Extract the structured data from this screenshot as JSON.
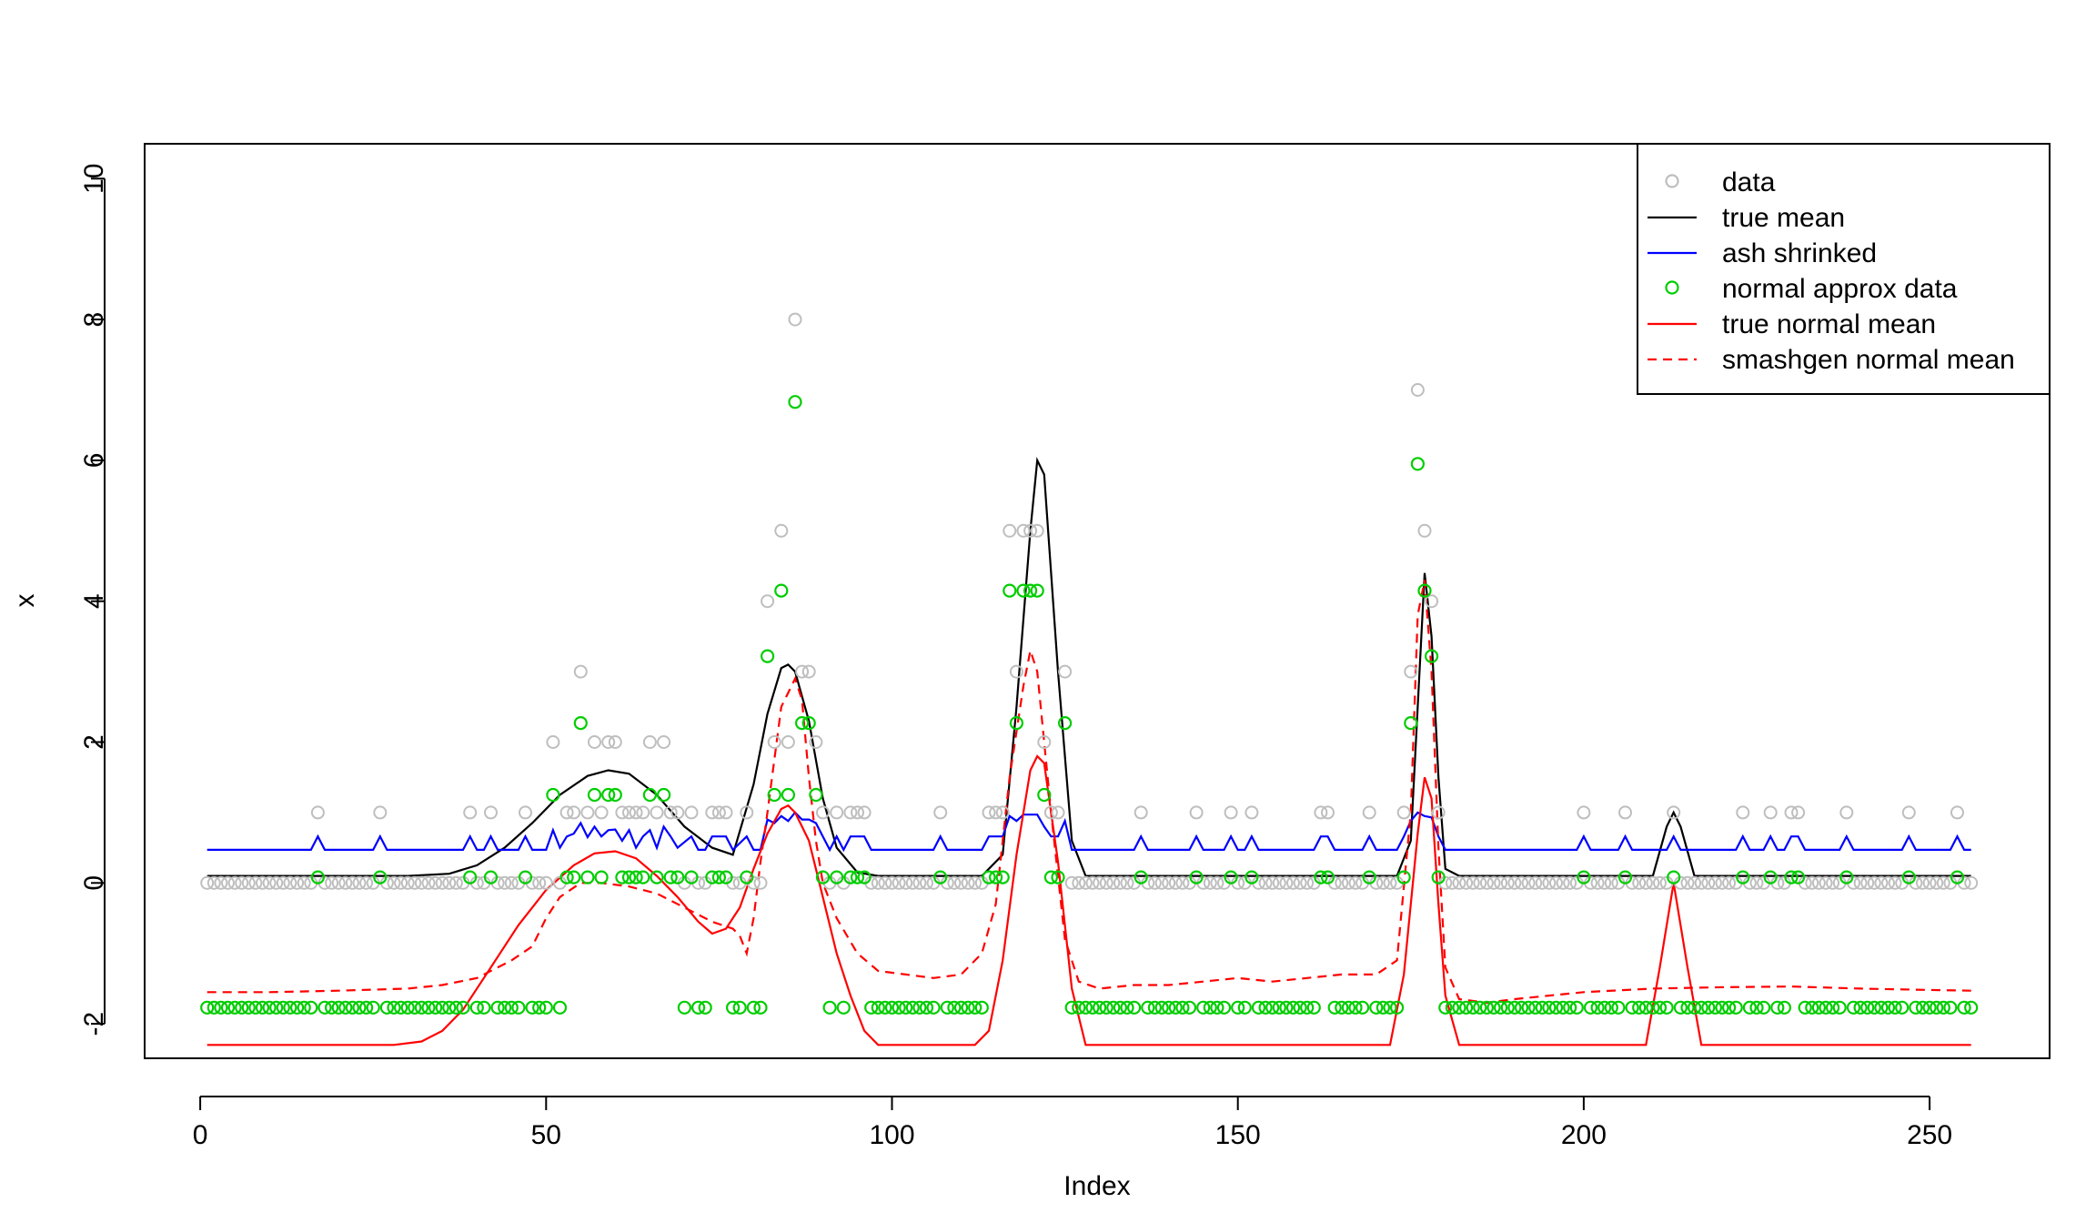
{
  "chart_data": {
    "type": "line",
    "title": "",
    "xlabel": "Index",
    "ylabel": "x",
    "xlim": [
      1,
      256
    ],
    "ylim": [
      -2.3,
      10
    ],
    "xticks": [
      0,
      50,
      100,
      150,
      200,
      250
    ],
    "yticks": [
      -2,
      0,
      2,
      4,
      6,
      8,
      10
    ],
    "grid": false,
    "legend_position": "top-right",
    "colors": {
      "data": "#bebebe",
      "true_mean": "#000000",
      "ash": "#0000ff",
      "normal_data": "#00cd00",
      "true_normal": "#ff0000",
      "smash": "#ff0000"
    },
    "legend": [
      {
        "label": "data",
        "kind": "point",
        "color": "#bebebe"
      },
      {
        "label": "true mean",
        "kind": "line",
        "color": "#000000",
        "dash": false
      },
      {
        "label": "ash shrinked",
        "kind": "line",
        "color": "#0000ff",
        "dash": false
      },
      {
        "label": "normal approx data",
        "kind": "point",
        "color": "#00cd00"
      },
      {
        "label": "true normal mean",
        "kind": "line",
        "color": "#ff0000",
        "dash": false
      },
      {
        "label": "smashgen normal mean",
        "kind": "line",
        "color": "#ff0000",
        "dash": true
      }
    ],
    "data_counts": {
      "1": 17,
      "2": 26,
      "3": 39,
      "4": 42,
      "5": 47,
      "6": 51,
      "7": 53,
      "8": 54,
      "9": 55,
      "10": 57,
      "11": 59,
      "12": 60,
      "13": 63,
      "14": 64,
      "15": 65,
      "16": 66,
      "17": 68,
      "18": 71,
      "19": 74,
      "20": 75,
      "21": 76,
      "22": 77,
      "23": 79,
      "24": 80,
      "25": 81,
      "26": 82,
      "27": 83,
      "28": 84,
      "29": 85,
      "30": 86,
      "31": 87,
      "32": 88,
      "33": 89,
      "34": 90,
      "35": 91,
      "36": 93,
      "37": 94,
      "38": 95,
      "39": 96,
      "40": 107,
      "41": 112,
      "42": 113,
      "43": 114,
      "44": 115,
      "45": 117,
      "46": 118,
      "47": 119,
      "48": 120,
      "49": 121,
      "50": 122,
      "51": 123,
      "52": 124,
      "53": 125,
      "54": 136,
      "55": 144,
      "56": 149,
      "57": 152,
      "58": 162,
      "59": 163,
      "60": 169,
      "61": 174,
      "62": 175,
      "63": 176,
      "64": 177,
      "65": 178,
      "66": 179,
      "67": 200,
      "68": 206,
      "69": 212,
      "70": 223,
      "71": 227,
      "72": 229,
      "73": 230,
      "74": 231,
      "75": 238,
      "76": 247,
      "77": 254
    },
    "nonzero_data": [
      [
        17,
        1
      ],
      [
        26,
        1
      ],
      [
        39,
        1
      ],
      [
        42,
        1
      ],
      [
        47,
        1
      ],
      [
        51,
        2
      ],
      [
        53,
        1
      ],
      [
        54,
        1
      ],
      [
        55,
        3
      ],
      [
        56,
        1
      ],
      [
        57,
        2
      ],
      [
        58,
        1
      ],
      [
        59,
        2
      ],
      [
        60,
        2
      ],
      [
        61,
        1
      ],
      [
        62,
        1
      ],
      [
        63,
        1
      ],
      [
        64,
        1
      ],
      [
        65,
        2
      ],
      [
        66,
        1
      ],
      [
        67,
        2
      ],
      [
        68,
        1
      ],
      [
        69,
        1
      ],
      [
        71,
        1
      ],
      [
        74,
        1
      ],
      [
        75,
        1
      ],
      [
        76,
        1
      ],
      [
        79,
        1
      ],
      [
        82,
        4
      ],
      [
        83,
        2
      ],
      [
        84,
        5
      ],
      [
        85,
        2
      ],
      [
        86,
        8
      ],
      [
        87,
        3
      ],
      [
        88,
        3
      ],
      [
        89,
        2
      ],
      [
        90,
        1
      ],
      [
        92,
        1
      ],
      [
        94,
        1
      ],
      [
        95,
        1
      ],
      [
        96,
        1
      ],
      [
        107,
        1
      ],
      [
        114,
        1
      ],
      [
        115,
        1
      ],
      [
        116,
        1
      ],
      [
        117,
        5
      ],
      [
        118,
        3
      ],
      [
        119,
        5
      ],
      [
        120,
        5
      ],
      [
        121,
        5
      ],
      [
        122,
        2
      ],
      [
        123,
        1
      ],
      [
        124,
        1
      ],
      [
        125,
        3
      ],
      [
        136,
        1
      ],
      [
        144,
        1
      ],
      [
        149,
        1
      ],
      [
        152,
        1
      ],
      [
        162,
        1
      ],
      [
        163,
        1
      ],
      [
        169,
        1
      ],
      [
        174,
        1
      ],
      [
        175,
        3
      ],
      [
        176,
        7
      ],
      [
        177,
        5
      ],
      [
        178,
        4
      ],
      [
        179,
        1
      ],
      [
        200,
        1
      ],
      [
        206,
        1
      ],
      [
        213,
        1
      ],
      [
        223,
        1
      ],
      [
        227,
        1
      ],
      [
        230,
        1
      ],
      [
        231,
        1
      ],
      [
        238,
        1
      ],
      [
        247,
        1
      ],
      [
        254,
        1
      ]
    ],
    "normal_data_levels": {
      "0": -1.77,
      "1": 0.08,
      "2": 1.25,
      "3": 2.27,
      "4": 3.22,
      "5": 4.15,
      "7": 5.95,
      "8": 6.83
    },
    "true_mean_points": [
      [
        1,
        0.1
      ],
      [
        30,
        0.1
      ],
      [
        36,
        0.13
      ],
      [
        40,
        0.25
      ],
      [
        44,
        0.5
      ],
      [
        48,
        0.85
      ],
      [
        52,
        1.25
      ],
      [
        56,
        1.52
      ],
      [
        59,
        1.6
      ],
      [
        62,
        1.55
      ],
      [
        66,
        1.25
      ],
      [
        70,
        0.8
      ],
      [
        74,
        0.5
      ],
      [
        77,
        0.4
      ],
      [
        80,
        1.4
      ],
      [
        82,
        2.4
      ],
      [
        84,
        3.05
      ],
      [
        85,
        3.1
      ],
      [
        86,
        3.0
      ],
      [
        88,
        2.3
      ],
      [
        90,
        1.2
      ],
      [
        92,
        0.5
      ],
      [
        95,
        0.15
      ],
      [
        98,
        0.1
      ],
      [
        113,
        0.1
      ],
      [
        116,
        0.4
      ],
      [
        118,
        2.5
      ],
      [
        120,
        5.0
      ],
      [
        121,
        6.0
      ],
      [
        122,
        5.8
      ],
      [
        124,
        3.0
      ],
      [
        126,
        0.6
      ],
      [
        128,
        0.1
      ],
      [
        173,
        0.1
      ],
      [
        175,
        0.6
      ],
      [
        176,
        2.5
      ],
      [
        177,
        4.4
      ],
      [
        178,
        3.5
      ],
      [
        179,
        1.5
      ],
      [
        180,
        0.2
      ],
      [
        182,
        0.1
      ],
      [
        210,
        0.1
      ],
      [
        212,
        0.8
      ],
      [
        213,
        1.0
      ],
      [
        214,
        0.8
      ],
      [
        216,
        0.1
      ],
      [
        256,
        0.1
      ]
    ],
    "ash_points": [
      [
        1,
        0.47
      ],
      [
        16,
        0.47
      ],
      [
        17,
        0.66
      ],
      [
        18,
        0.47
      ],
      [
        25,
        0.47
      ],
      [
        26,
        0.66
      ],
      [
        27,
        0.47
      ],
      [
        38,
        0.47
      ],
      [
        39,
        0.66
      ],
      [
        40,
        0.47
      ],
      [
        41,
        0.47
      ],
      [
        42,
        0.66
      ],
      [
        43,
        0.47
      ],
      [
        46,
        0.47
      ],
      [
        47,
        0.66
      ],
      [
        48,
        0.47
      ],
      [
        50,
        0.47
      ],
      [
        51,
        0.75
      ],
      [
        52,
        0.5
      ],
      [
        53,
        0.66
      ],
      [
        54,
        0.7
      ],
      [
        55,
        0.85
      ],
      [
        56,
        0.65
      ],
      [
        57,
        0.8
      ],
      [
        58,
        0.66
      ],
      [
        59,
        0.75
      ],
      [
        60,
        0.76
      ],
      [
        61,
        0.6
      ],
      [
        62,
        0.75
      ],
      [
        63,
        0.5
      ],
      [
        64,
        0.66
      ],
      [
        65,
        0.75
      ],
      [
        66,
        0.5
      ],
      [
        67,
        0.8
      ],
      [
        68,
        0.66
      ],
      [
        69,
        0.5
      ],
      [
        71,
        0.66
      ],
      [
        72,
        0.47
      ],
      [
        73,
        0.47
      ],
      [
        74,
        0.66
      ],
      [
        75,
        0.66
      ],
      [
        76,
        0.66
      ],
      [
        77,
        0.47
      ],
      [
        79,
        0.66
      ],
      [
        80,
        0.47
      ],
      [
        81,
        0.47
      ],
      [
        82,
        0.9
      ],
      [
        83,
        0.85
      ],
      [
        84,
        0.95
      ],
      [
        85,
        0.88
      ],
      [
        86,
        1.0
      ],
      [
        87,
        0.9
      ],
      [
        88,
        0.9
      ],
      [
        89,
        0.85
      ],
      [
        90,
        0.66
      ],
      [
        91,
        0.47
      ],
      [
        92,
        0.66
      ],
      [
        93,
        0.47
      ],
      [
        94,
        0.66
      ],
      [
        95,
        0.66
      ],
      [
        96,
        0.66
      ],
      [
        97,
        0.47
      ],
      [
        106,
        0.47
      ],
      [
        107,
        0.66
      ],
      [
        108,
        0.47
      ],
      [
        113,
        0.47
      ],
      [
        114,
        0.66
      ],
      [
        115,
        0.66
      ],
      [
        116,
        0.66
      ],
      [
        117,
        0.95
      ],
      [
        118,
        0.88
      ],
      [
        119,
        0.97
      ],
      [
        120,
        0.97
      ],
      [
        121,
        0.97
      ],
      [
        122,
        0.8
      ],
      [
        123,
        0.66
      ],
      [
        124,
        0.66
      ],
      [
        125,
        0.88
      ],
      [
        126,
        0.47
      ],
      [
        135,
        0.47
      ],
      [
        136,
        0.66
      ],
      [
        137,
        0.47
      ],
      [
        143,
        0.47
      ],
      [
        144,
        0.66
      ],
      [
        145,
        0.47
      ],
      [
        148,
        0.47
      ],
      [
        149,
        0.66
      ],
      [
        150,
        0.47
      ],
      [
        151,
        0.47
      ],
      [
        152,
        0.66
      ],
      [
        153,
        0.47
      ],
      [
        161,
        0.47
      ],
      [
        162,
        0.66
      ],
      [
        163,
        0.66
      ],
      [
        164,
        0.47
      ],
      [
        168,
        0.47
      ],
      [
        169,
        0.66
      ],
      [
        170,
        0.47
      ],
      [
        173,
        0.47
      ],
      [
        174,
        0.66
      ],
      [
        175,
        0.88
      ],
      [
        176,
        1.0
      ],
      [
        177,
        0.95
      ],
      [
        178,
        0.93
      ],
      [
        179,
        0.66
      ],
      [
        180,
        0.47
      ],
      [
        199,
        0.47
      ],
      [
        200,
        0.66
      ],
      [
        201,
        0.47
      ],
      [
        205,
        0.47
      ],
      [
        206,
        0.66
      ],
      [
        207,
        0.47
      ],
      [
        212,
        0.47
      ],
      [
        213,
        0.66
      ],
      [
        214,
        0.47
      ],
      [
        222,
        0.47
      ],
      [
        223,
        0.66
      ],
      [
        224,
        0.47
      ],
      [
        226,
        0.47
      ],
      [
        227,
        0.66
      ],
      [
        228,
        0.47
      ],
      [
        229,
        0.47
      ],
      [
        230,
        0.66
      ],
      [
        231,
        0.66
      ],
      [
        232,
        0.47
      ],
      [
        237,
        0.47
      ],
      [
        238,
        0.66
      ],
      [
        239,
        0.47
      ],
      [
        246,
        0.47
      ],
      [
        247,
        0.66
      ],
      [
        248,
        0.47
      ],
      [
        253,
        0.47
      ],
      [
        254,
        0.66
      ],
      [
        255,
        0.47
      ],
      [
        256,
        0.47
      ]
    ],
    "true_normal_points": [
      [
        1,
        -2.3
      ],
      [
        28,
        -2.3
      ],
      [
        32,
        -2.25
      ],
      [
        35,
        -2.1
      ],
      [
        38,
        -1.8
      ],
      [
        42,
        -1.2
      ],
      [
        46,
        -0.6
      ],
      [
        50,
        -0.1
      ],
      [
        54,
        0.25
      ],
      [
        57,
        0.42
      ],
      [
        60,
        0.45
      ],
      [
        63,
        0.35
      ],
      [
        66,
        0.1
      ],
      [
        69,
        -0.2
      ],
      [
        72,
        -0.55
      ],
      [
        74,
        -0.72
      ],
      [
        76,
        -0.65
      ],
      [
        78,
        -0.35
      ],
      [
        80,
        0.2
      ],
      [
        82,
        0.7
      ],
      [
        84,
        1.05
      ],
      [
        85,
        1.1
      ],
      [
        86,
        1.0
      ],
      [
        88,
        0.6
      ],
      [
        90,
        -0.2
      ],
      [
        92,
        -1.0
      ],
      [
        94,
        -1.6
      ],
      [
        96,
        -2.1
      ],
      [
        98,
        -2.3
      ],
      [
        112,
        -2.3
      ],
      [
        114,
        -2.1
      ],
      [
        116,
        -1.1
      ],
      [
        118,
        0.4
      ],
      [
        120,
        1.6
      ],
      [
        121,
        1.8
      ],
      [
        122,
        1.7
      ],
      [
        124,
        0.3
      ],
      [
        126,
        -1.5
      ],
      [
        128,
        -2.3
      ],
      [
        172,
        -2.3
      ],
      [
        174,
        -1.3
      ],
      [
        176,
        0.7
      ],
      [
        177,
        1.5
      ],
      [
        178,
        1.2
      ],
      [
        179,
        -0.3
      ],
      [
        180,
        -1.6
      ],
      [
        182,
        -2.3
      ],
      [
        209,
        -2.3
      ],
      [
        211,
        -1.2
      ],
      [
        213,
        0.0
      ],
      [
        215,
        -1.2
      ],
      [
        217,
        -2.3
      ],
      [
        256,
        -2.3
      ]
    ],
    "smash_points": [
      [
        1,
        -1.55
      ],
      [
        10,
        -1.55
      ],
      [
        20,
        -1.53
      ],
      [
        30,
        -1.5
      ],
      [
        35,
        -1.45
      ],
      [
        40,
        -1.35
      ],
      [
        45,
        -1.1
      ],
      [
        48,
        -0.9
      ],
      [
        50,
        -0.5
      ],
      [
        52,
        -0.2
      ],
      [
        55,
        0.0
      ],
      [
        58,
        0.0
      ],
      [
        62,
        -0.05
      ],
      [
        66,
        -0.15
      ],
      [
        70,
        -0.35
      ],
      [
        74,
        -0.55
      ],
      [
        77,
        -0.65
      ],
      [
        78,
        -0.75
      ],
      [
        79,
        -1.0
      ],
      [
        80,
        -0.5
      ],
      [
        81,
        0.3
      ],
      [
        82,
        1.0
      ],
      [
        84,
        2.5
      ],
      [
        86,
        2.9
      ],
      [
        87,
        2.6
      ],
      [
        88,
        1.5
      ],
      [
        89,
        0.6
      ],
      [
        90,
        0.0
      ],
      [
        92,
        -0.5
      ],
      [
        95,
        -1.0
      ],
      [
        98,
        -1.25
      ],
      [
        102,
        -1.3
      ],
      [
        106,
        -1.35
      ],
      [
        110,
        -1.3
      ],
      [
        113,
        -1.0
      ],
      [
        115,
        -0.3
      ],
      [
        117,
        1.5
      ],
      [
        119,
        2.8
      ],
      [
        120,
        3.3
      ],
      [
        121,
        3.0
      ],
      [
        123,
        1.0
      ],
      [
        125,
        -0.8
      ],
      [
        127,
        -1.4
      ],
      [
        130,
        -1.5
      ],
      [
        135,
        -1.45
      ],
      [
        140,
        -1.45
      ],
      [
        145,
        -1.4
      ],
      [
        150,
        -1.35
      ],
      [
        155,
        -1.4
      ],
      [
        160,
        -1.35
      ],
      [
        165,
        -1.3
      ],
      [
        170,
        -1.3
      ],
      [
        173,
        -1.1
      ],
      [
        175,
        1.0
      ],
      [
        176,
        3.8
      ],
      [
        177,
        4.3
      ],
      [
        178,
        3.0
      ],
      [
        179,
        0.5
      ],
      [
        180,
        -1.2
      ],
      [
        182,
        -1.65
      ],
      [
        186,
        -1.7
      ],
      [
        190,
        -1.65
      ],
      [
        195,
        -1.6
      ],
      [
        200,
        -1.55
      ],
      [
        210,
        -1.5
      ],
      [
        220,
        -1.48
      ],
      [
        230,
        -1.47
      ],
      [
        240,
        -1.5
      ],
      [
        250,
        -1.52
      ],
      [
        256,
        -1.53
      ]
    ]
  }
}
